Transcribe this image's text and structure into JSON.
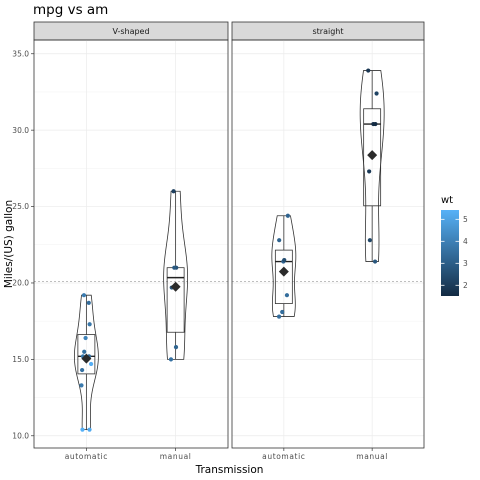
{
  "chart_data": {
    "type": "violin-box-jitter",
    "title": "mpg vs am",
    "xlabel": "Transmission",
    "ylabel": "Miles/(US) gallon",
    "ylim": [
      9.2,
      35.9
    ],
    "yticks": [
      10.0,
      15.0,
      20.0,
      25.0,
      30.0,
      35.0
    ],
    "ytick_labels": [
      "10.0",
      "15.0",
      "20.0",
      "25.0",
      "30.0",
      "35.0"
    ],
    "categories": [
      "automatic",
      "manual"
    ],
    "reference_line": 20.09,
    "grid": true,
    "legend": {
      "title": "wt",
      "type": "colorbar",
      "placement": "right",
      "range": [
        1.513,
        5.424
      ],
      "ticks": [
        2,
        3,
        4,
        5
      ],
      "tick_labels": [
        "2",
        "3",
        "4",
        "5"
      ],
      "color_low": "#132B43",
      "color_high": "#56B1F7"
    },
    "panels": [
      {
        "strip": "V-shaped",
        "groups": [
          {
            "category": "automatic",
            "points": [
              {
                "y": 18.7,
                "wt": 3.44
              },
              {
                "y": 14.3,
                "wt": 3.57
              },
              {
                "y": 16.4,
                "wt": 4.07
              },
              {
                "y": 17.3,
                "wt": 3.73
              },
              {
                "y": 15.2,
                "wt": 3.78
              },
              {
                "y": 10.4,
                "wt": 5.25
              },
              {
                "y": 10.4,
                "wt": 5.42
              },
              {
                "y": 14.7,
                "wt": 5.35
              },
              {
                "y": 15.5,
                "wt": 3.52
              },
              {
                "y": 15.2,
                "wt": 3.44
              },
              {
                "y": 13.3,
                "wt": 3.84
              },
              {
                "y": 19.2,
                "wt": 3.85
              }
            ],
            "box": {
              "lower": 10.4,
              "q1": 14.05,
              "median": 15.2,
              "q3": 16.625,
              "upper": 19.2
            },
            "mean": 15.05
          },
          {
            "category": "manual",
            "points": [
              {
                "y": 21.0,
                "wt": 2.62
              },
              {
                "y": 21.0,
                "wt": 2.875
              },
              {
                "y": 26.0,
                "wt": 2.14
              },
              {
                "y": 15.8,
                "wt": 3.17
              },
              {
                "y": 19.7,
                "wt": 2.77
              },
              {
                "y": 15.0,
                "wt": 3.57
              }
            ],
            "box": {
              "lower": 15.0,
              "q1": 16.775,
              "median": 20.35,
              "q3": 21.0,
              "upper": 26.0
            },
            "mean": 19.75
          }
        ]
      },
      {
        "strip": "straight",
        "groups": [
          {
            "category": "automatic",
            "points": [
              {
                "y": 21.4,
                "wt": 3.215
              },
              {
                "y": 18.1,
                "wt": 3.46
              },
              {
                "y": 24.4,
                "wt": 3.19
              },
              {
                "y": 22.8,
                "wt": 3.15
              },
              {
                "y": 19.2,
                "wt": 3.44
              },
              {
                "y": 17.8,
                "wt": 3.44
              },
              {
                "y": 21.5,
                "wt": 2.465
              }
            ],
            "box": {
              "lower": 17.8,
              "q1": 18.65,
              "median": 21.4,
              "q3": 22.15,
              "upper": 24.4
            },
            "mean": 20.74
          },
          {
            "category": "manual",
            "points": [
              {
                "y": 22.8,
                "wt": 2.32
              },
              {
                "y": 32.4,
                "wt": 2.2
              },
              {
                "y": 30.4,
                "wt": 1.615
              },
              {
                "y": 33.9,
                "wt": 1.835
              },
              {
                "y": 27.3,
                "wt": 1.935
              },
              {
                "y": 30.4,
                "wt": 1.513
              },
              {
                "y": 21.4,
                "wt": 2.78
              }
            ],
            "box": {
              "lower": 21.4,
              "q1": 25.05,
              "median": 30.4,
              "q3": 31.4,
              "upper": 33.9
            },
            "mean": 28.37
          }
        ]
      }
    ]
  }
}
